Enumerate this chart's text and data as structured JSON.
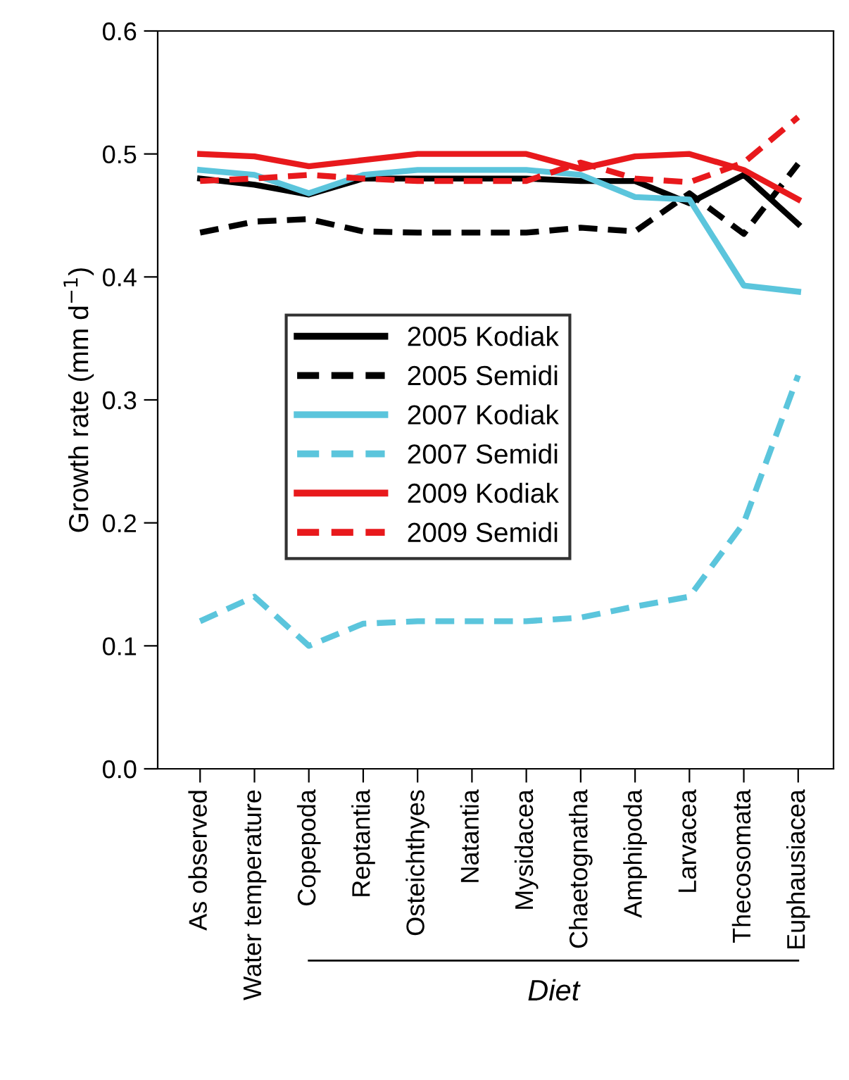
{
  "chart_data": {
    "type": "line",
    "ylabel": "Growth rate (mm d$^{−1}$)",
    "categories": [
      "As observed",
      "Water temperature",
      "Copepoda",
      "Reptantia",
      "Osteichthyes",
      "Natantia",
      "Mysidacea",
      "Chaetognatha",
      "Amphipoda",
      "Larvacea",
      "Thecosomata",
      "Euphausiacea"
    ],
    "series": [
      {
        "name": "2005 Kodiak",
        "color": "#000000",
        "line_style": "solid",
        "values": [
          0.48,
          0.475,
          0.467,
          0.48,
          0.48,
          0.48,
          0.48,
          0.478,
          0.478,
          0.46,
          0.483,
          0.443
        ]
      },
      {
        "name": "2005 Semidi",
        "color": "#000000",
        "line_style": "dashed",
        "values": [
          0.436,
          0.445,
          0.447,
          0.437,
          0.436,
          0.436,
          0.436,
          0.44,
          0.437,
          0.468,
          0.435,
          0.492
        ]
      },
      {
        "name": "2007 Kodiak",
        "color": "#5bc5dc",
        "line_style": "solid",
        "values": [
          0.487,
          0.483,
          0.468,
          0.483,
          0.487,
          0.487,
          0.487,
          0.483,
          0.465,
          0.463,
          0.393,
          0.388
        ]
      },
      {
        "name": "2007 Semidi",
        "color": "#5bc5dc",
        "line_style": "dashed",
        "values": [
          0.12,
          0.14,
          0.1,
          0.118,
          0.12,
          0.12,
          0.12,
          0.123,
          0.132,
          0.14,
          0.2,
          0.32
        ]
      },
      {
        "name": "2009 Kodiak",
        "color": "#e8191c",
        "line_style": "solid",
        "values": [
          0.5,
          0.498,
          0.49,
          0.495,
          0.5,
          0.5,
          0.5,
          0.488,
          0.498,
          0.5,
          0.487,
          0.463
        ]
      },
      {
        "name": "2009 Semidi",
        "color": "#e8191c",
        "line_style": "dashed",
        "values": [
          0.478,
          0.48,
          0.483,
          0.48,
          0.478,
          0.478,
          0.478,
          0.493,
          0.48,
          0.477,
          0.493,
          0.53
        ]
      }
    ],
    "ylim": [
      0.0,
      0.6
    ],
    "yticks": [
      {
        "value": 0,
        "label": "0.0"
      },
      0.1,
      0.2,
      0.3,
      0.4,
      0.5,
      0.6
    ],
    "legend": "center",
    "grid": false,
    "marker": "none",
    "annotations": [
      "Diet"
    ]
  }
}
